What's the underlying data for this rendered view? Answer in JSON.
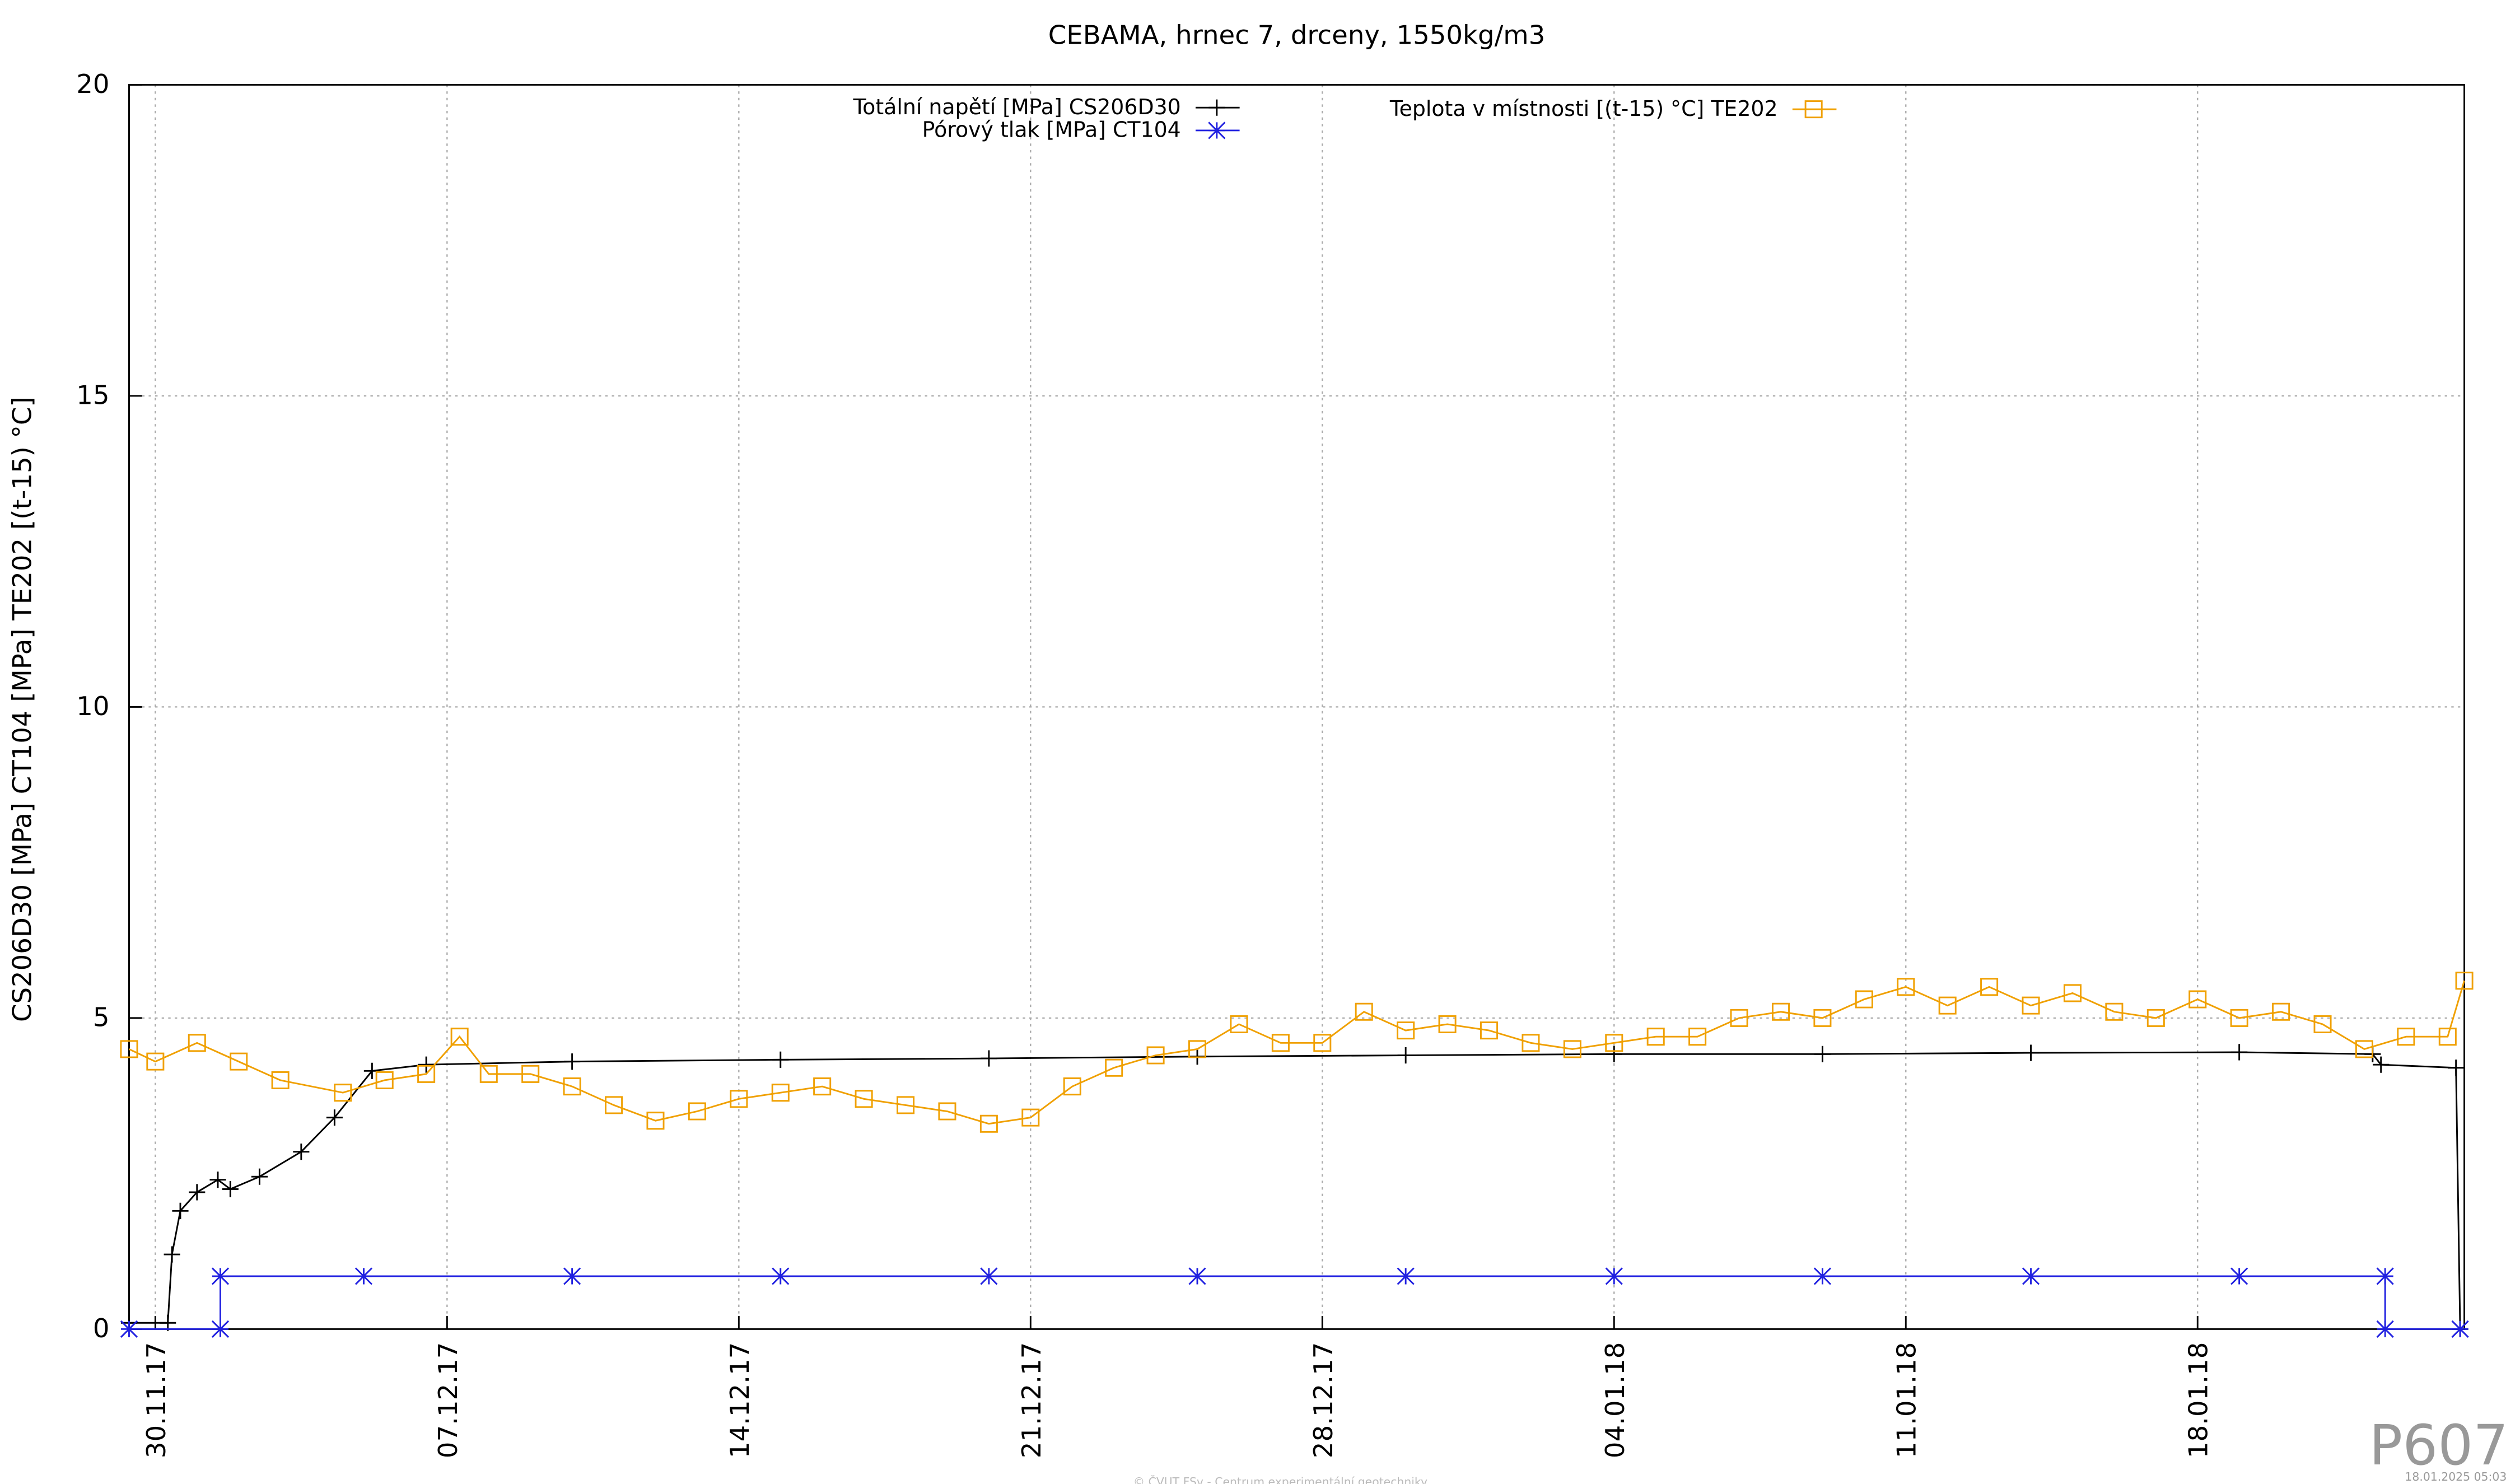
{
  "chart_data": {
    "type": "line",
    "title": "CEBAMA, hrnec 7, drceny, 1550kg/m3",
    "y_label": "CS206D30 [MPa] CT104 [MPa] TE202 [(t-15) °C]",
    "xlim": [
      -0.63,
      55.4
    ],
    "xticks": [
      {
        "value": 0,
        "label": "30.11.17"
      },
      {
        "value": 7,
        "label": "07.12.17"
      },
      {
        "value": 14,
        "label": "14.12.17"
      },
      {
        "value": 21,
        "label": "21.12.17"
      },
      {
        "value": 28,
        "label": "28.12.17"
      },
      {
        "value": 35,
        "label": "04.01.18"
      },
      {
        "value": 42,
        "label": "11.01.18"
      },
      {
        "value": 49,
        "label": "18.01.18"
      }
    ],
    "ylim": [
      0,
      20
    ],
    "yticks": [
      0,
      5,
      10,
      15,
      20
    ],
    "grid": true,
    "series": [
      {
        "name": "Totální napětí [MPa] CS206D30",
        "color": "#000000",
        "marker": "plus",
        "x": [
          -0.63,
          0.3,
          0.4,
          0.6,
          1.0,
          1.5,
          1.8,
          2.5,
          3.5,
          4.3,
          5.2,
          6.5,
          10,
          15,
          20,
          25,
          30,
          35,
          40,
          45,
          50,
          53.2,
          53.4,
          55.2,
          55.3
        ],
        "values": [
          0.1,
          0.1,
          1.2,
          1.9,
          2.2,
          2.4,
          2.25,
          2.45,
          2.85,
          3.4,
          4.15,
          4.25,
          4.3,
          4.33,
          4.35,
          4.38,
          4.4,
          4.42,
          4.42,
          4.44,
          4.45,
          4.42,
          4.25,
          4.2,
          0.0
        ]
      },
      {
        "name": "Pórový tlak [MPa] CT104",
        "color": "#2020e0",
        "marker": "star",
        "x": [
          -0.63,
          1.56,
          1.56,
          5.0,
          10.0,
          15.0,
          20.0,
          25.0,
          30.0,
          35.0,
          40.0,
          45.0,
          50.0,
          53.5,
          53.5,
          55.3
        ],
        "values": [
          0,
          0,
          0.85,
          0.85,
          0.85,
          0.85,
          0.85,
          0.85,
          0.85,
          0.85,
          0.85,
          0.85,
          0.85,
          0.85,
          0,
          0
        ]
      },
      {
        "name": "Teplota v místnosti [(t-15) °C] TE202",
        "color": "#f0a000",
        "marker": "square",
        "x": [
          -0.63,
          0,
          1,
          2,
          3,
          4.5,
          5.5,
          6.5,
          7.3,
          8,
          9,
          10,
          11,
          12,
          13,
          14,
          15,
          16,
          17,
          18,
          19,
          20,
          21,
          22,
          23,
          24,
          25,
          26,
          27,
          28,
          29,
          30,
          31,
          32,
          33,
          34,
          35,
          36,
          37,
          38,
          39,
          40,
          41,
          42,
          43,
          44,
          45,
          46,
          47,
          48,
          49,
          50,
          51,
          52,
          53,
          54,
          55,
          55.4
        ],
        "values": [
          4.5,
          4.3,
          4.6,
          4.3,
          4.0,
          3.8,
          4.0,
          4.1,
          4.7,
          4.1,
          4.1,
          3.9,
          3.6,
          3.35,
          3.5,
          3.7,
          3.8,
          3.9,
          3.7,
          3.6,
          3.5,
          3.3,
          3.4,
          3.9,
          4.2,
          4.4,
          4.5,
          4.9,
          4.6,
          4.6,
          5.1,
          4.8,
          4.9,
          4.8,
          4.6,
          4.5,
          4.6,
          4.7,
          4.7,
          5.0,
          5.1,
          5.0,
          5.3,
          5.5,
          5.2,
          5.5,
          5.2,
          5.4,
          5.1,
          5.0,
          5.3,
          5.0,
          5.1,
          4.9,
          4.5,
          4.7,
          4.7,
          5.6
        ]
      }
    ],
    "watermark": "P607",
    "footer": "© ČVUT FSv - Centrum experimentální geotechniky",
    "timestamp": "18.01.2025 05:03"
  }
}
